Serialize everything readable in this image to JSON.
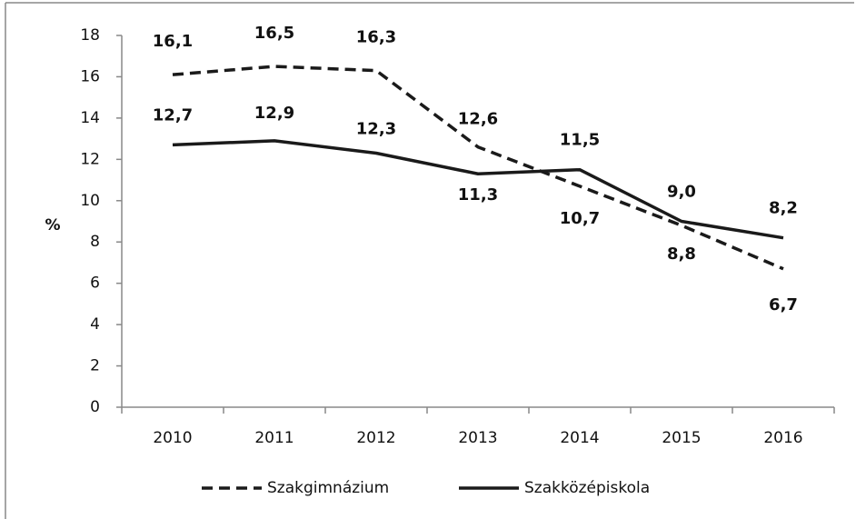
{
  "chart_data": {
    "type": "line",
    "y_label": "%",
    "categories": [
      "2010",
      "2011",
      "2012",
      "2013",
      "2014",
      "2015",
      "2016"
    ],
    "series": [
      {
        "name": "Szakgimnázium",
        "color": "#1a1a1a",
        "dash": true,
        "values": [
          16.1,
          16.5,
          16.3,
          12.6,
          10.7,
          8.8,
          6.7
        ],
        "value_labels": [
          "16,1",
          "16,5",
          "16,3",
          "12,6",
          "10,7",
          "8,8",
          "6,7"
        ]
      },
      {
        "name": "Szakközépiskola",
        "color": "#1a1a1a",
        "dash": false,
        "values": [
          12.7,
          12.9,
          12.3,
          11.3,
          11.5,
          9.0,
          8.2
        ],
        "value_labels": [
          "12,7",
          "12,9",
          "12,3",
          "11,3",
          "11,5",
          "9,0",
          "8,2"
        ]
      }
    ],
    "ylim": [
      0,
      18
    ],
    "yticks": [
      0,
      2,
      4,
      6,
      8,
      10,
      12,
      14,
      16,
      18
    ],
    "grid": false,
    "legend": "bottom"
  }
}
